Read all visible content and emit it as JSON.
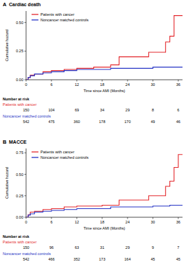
{
  "chart_data": [
    {
      "type": "line",
      "panel": "A",
      "title": "Cardiac death",
      "x_label": "Time since AMI (Months)",
      "y_label": "Cumulative hazard",
      "line_style": "step",
      "legend": "top-left",
      "xlim": [
        0,
        37
      ],
      "xticks": [
        0,
        6,
        12,
        18,
        24,
        30,
        36
      ],
      "ylim": [
        0,
        0.6
      ],
      "yticks": [
        {
          "value": 0,
          "label": "0.00"
        },
        {
          "value": 0.25,
          "label": "0.25"
        },
        {
          "value": 0.5,
          "label": "0.50"
        }
      ],
      "series": [
        {
          "name": "Patients with cancer",
          "color": "#e3262b",
          "x": [
            0,
            0.5,
            1,
            2,
            4,
            6,
            9,
            12,
            16,
            20,
            22,
            29,
            33,
            34,
            35,
            37
          ],
          "values": [
            0,
            0.02,
            0.04,
            0.05,
            0.07,
            0.08,
            0.09,
            0.1,
            0.11,
            0.13,
            0.2,
            0.24,
            0.33,
            0.38,
            0.56,
            0.56
          ]
        },
        {
          "name": "Noncancer matched controls",
          "color": "#2331c4",
          "x": [
            0,
            0.5,
            1,
            2,
            4,
            6,
            9,
            12,
            20,
            30,
            37
          ],
          "values": [
            0,
            0.02,
            0.035,
            0.05,
            0.06,
            0.07,
            0.08,
            0.09,
            0.1,
            0.11,
            0.11
          ]
        }
      ],
      "number_at_risk": {
        "title": "Number at risk",
        "x": [
          0,
          6,
          12,
          18,
          24,
          30,
          36
        ],
        "rows": [
          [
            150,
            104,
            69,
            34,
            29,
            8,
            6
          ],
          [
            542,
            475,
            360,
            178,
            170,
            49,
            46
          ]
        ]
      }
    },
    {
      "type": "line",
      "panel": "B",
      "title": "MACCE",
      "x_label": "Time since AMI (Months)",
      "y_label": "Cumulative hazard",
      "line_style": "step",
      "legend": "top-left",
      "xlim": [
        0,
        37
      ],
      "xticks": [
        0,
        6,
        12,
        18,
        24,
        30,
        36
      ],
      "ylim": [
        0,
        0.8
      ],
      "yticks": [
        {
          "value": 0,
          "label": "0.00"
        },
        {
          "value": 0.25,
          "label": "0.25"
        },
        {
          "value": 0.5,
          "label": "0.50"
        },
        {
          "value": 0.75,
          "label": "0.75"
        }
      ],
      "series": [
        {
          "name": "Patients with cancer",
          "color": "#e3262b",
          "x": [
            0,
            0.5,
            1,
            2,
            4,
            6,
            9,
            12,
            18,
            22,
            29,
            33,
            34,
            35,
            36,
            37
          ],
          "values": [
            0,
            0.03,
            0.06,
            0.07,
            0.09,
            0.1,
            0.12,
            0.13,
            0.14,
            0.2,
            0.25,
            0.36,
            0.42,
            0.58,
            0.73,
            0.73
          ]
        },
        {
          "name": "Noncancer matched controls",
          "color": "#2331c4",
          "x": [
            0,
            0.5,
            1,
            2,
            4,
            6,
            9,
            12,
            20,
            30,
            34,
            37
          ],
          "values": [
            0,
            0.025,
            0.04,
            0.06,
            0.07,
            0.08,
            0.09,
            0.1,
            0.12,
            0.13,
            0.14,
            0.14
          ]
        }
      ],
      "number_at_risk": {
        "title": "Number at risk",
        "x": [
          0,
          6,
          12,
          18,
          24,
          30,
          36
        ],
        "rows": [
          [
            150,
            96,
            63,
            31,
            29,
            9,
            7
          ],
          [
            542,
            466,
            352,
            173,
            164,
            45,
            45
          ]
        ]
      }
    }
  ]
}
